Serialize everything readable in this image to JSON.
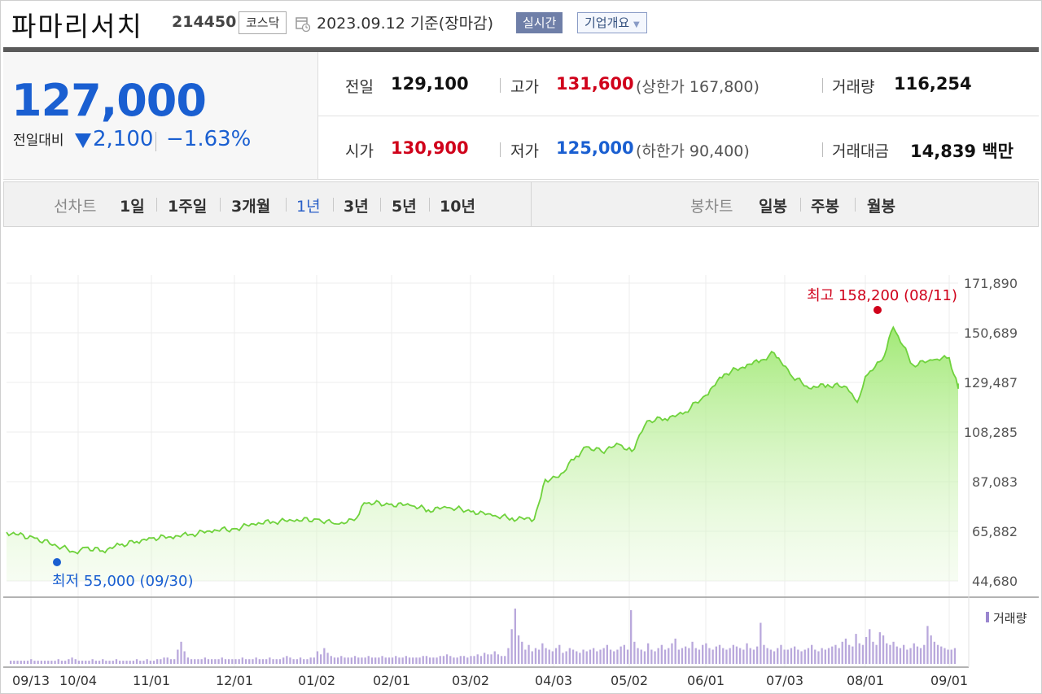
{
  "header": {
    "company": "파마리서치",
    "code": "214450",
    "market": "코스닥",
    "date": "2023.09.12 기준(장마감)",
    "realtime": "실시간",
    "corp_info": "기업개요"
  },
  "price": {
    "current": "127,000",
    "compare_label": "전일대비",
    "change": "2,100",
    "change_pct": "−1.63%"
  },
  "stats": {
    "prev_label": "전일",
    "prev": "129,100",
    "high_label": "고가",
    "high": "131,600",
    "upper_limit": "(상한가 167,800)",
    "volume_label": "거래량",
    "volume": "116,254",
    "open_label": "시가",
    "open": "130,900",
    "low_label": "저가",
    "low": "125,000",
    "lower_limit": "(하한가 90,400)",
    "amount_label": "거래대금",
    "amount": "14,839 백만"
  },
  "tabs": {
    "line_label": "선차트",
    "line": [
      "1일",
      "1주일",
      "3개월",
      "1년",
      "3년",
      "5년",
      "10년"
    ],
    "selected": "1년",
    "candle_label": "봉차트",
    "candle": [
      "일봉",
      "주봉",
      "월봉"
    ]
  },
  "colors": {
    "up": "#d0021b",
    "down": "#1a5fd1",
    "line": "#6fd23c",
    "volume": "#b9a8dc"
  },
  "chart_data": {
    "type": "area",
    "yticks": [
      "171,890",
      "150,689",
      "129,487",
      "108,285",
      "87,083",
      "65,882",
      "44,680"
    ],
    "ylim": [
      44680,
      171890
    ],
    "xticks": [
      "09/13",
      "10/04",
      "11/01",
      "12/01",
      "01/02",
      "02/01",
      "03/02",
      "04/03",
      "05/02",
      "06/01",
      "07/03",
      "08/01",
      "09/01"
    ],
    "high_label": "최고 158,200 (08/11)",
    "low_label": "최저 55,000 (09/30)",
    "high": {
      "date": "08/11",
      "value": 158200
    },
    "low": {
      "date": "09/30",
      "value": 55000
    },
    "volume_label": "거래량",
    "series": [
      {
        "points": [
          [
            "09/13",
            65500
          ],
          [
            "09/20",
            63000
          ],
          [
            "09/30",
            57000
          ],
          [
            "10/04",
            59000
          ],
          [
            "10/11",
            57500
          ],
          [
            "10/18",
            60000
          ],
          [
            "10/25",
            61500
          ],
          [
            "11/01",
            63000
          ],
          [
            "11/08",
            63500
          ],
          [
            "11/15",
            64500
          ],
          [
            "11/22",
            66000
          ],
          [
            "12/01",
            67000
          ],
          [
            "12/08",
            69000
          ],
          [
            "12/15",
            70000
          ],
          [
            "12/22",
            70500
          ],
          [
            "01/02",
            71000
          ],
          [
            "01/09",
            69000
          ],
          [
            "01/16",
            70500
          ],
          [
            "01/20",
            78000
          ],
          [
            "02/01",
            77500
          ],
          [
            "02/08",
            77000
          ],
          [
            "02/15",
            75000
          ],
          [
            "02/22",
            76000
          ],
          [
            "03/02",
            74500
          ],
          [
            "03/09",
            72500
          ],
          [
            "03/16",
            71500
          ],
          [
            "03/24",
            71000
          ],
          [
            "03/28",
            88000
          ],
          [
            "04/03",
            89000
          ],
          [
            "04/10",
            98000
          ],
          [
            "04/14",
            102000
          ],
          [
            "04/20",
            100000
          ],
          [
            "04/27",
            103000
          ],
          [
            "05/02",
            100000
          ],
          [
            "05/08",
            113000
          ],
          [
            "05/15",
            114000
          ],
          [
            "05/22",
            116000
          ],
          [
            "06/01",
            124000
          ],
          [
            "06/08",
            133000
          ],
          [
            "06/15",
            136000
          ],
          [
            "06/22",
            139000
          ],
          [
            "06/27",
            142000
          ],
          [
            "07/03",
            133000
          ],
          [
            "07/10",
            127000
          ],
          [
            "07/17",
            128500
          ],
          [
            "07/24",
            127500
          ],
          [
            "07/28",
            121000
          ],
          [
            "08/01",
            132000
          ],
          [
            "08/07",
            139000
          ],
          [
            "08/11",
            153000
          ],
          [
            "08/18",
            137000
          ],
          [
            "08/25",
            139000
          ],
          [
            "09/01",
            140000
          ],
          [
            "09/05",
            127000
          ],
          [
            "09/08",
            129000
          ],
          [
            "09/12",
            127000
          ]
        ]
      }
    ],
    "volume": [
      2,
      2,
      2,
      2,
      2,
      2,
      3,
      2,
      2,
      2,
      2,
      2,
      2,
      2,
      3,
      2,
      2,
      3,
      4,
      3,
      2,
      2,
      2,
      2,
      3,
      2,
      2,
      3,
      2,
      2,
      2,
      3,
      2,
      2,
      2,
      2,
      2,
      3,
      2,
      2,
      3,
      2,
      2,
      3,
      3,
      4,
      4,
      3,
      3,
      9,
      14,
      8,
      4,
      3,
      3,
      3,
      3,
      4,
      3,
      3,
      3,
      3,
      4,
      3,
      3,
      3,
      3,
      3,
      4,
      3,
      3,
      3,
      4,
      3,
      3,
      3,
      4,
      3,
      3,
      3,
      4,
      5,
      4,
      3,
      3,
      4,
      3,
      3,
      4,
      4,
      8,
      6,
      10,
      7,
      5,
      4,
      4,
      5,
      4,
      4,
      4,
      5,
      4,
      4,
      4,
      5,
      4,
      4,
      4,
      5,
      4,
      4,
      4,
      5,
      4,
      4,
      5,
      4,
      4,
      4,
      4,
      5,
      5,
      4,
      4,
      4,
      5,
      5,
      6,
      5,
      4,
      4,
      5,
      5,
      4,
      5,
      5,
      6,
      5,
      7,
      6,
      6,
      8,
      6,
      5,
      5,
      10,
      22,
      35,
      18,
      14,
      9,
      12,
      8,
      10,
      9,
      13,
      10,
      9,
      8,
      10,
      12,
      7,
      8,
      10,
      9,
      8,
      7,
      9,
      8,
      9,
      10,
      8,
      9,
      10,
      12,
      9,
      8,
      9,
      11,
      12,
      9,
      34,
      14,
      10,
      9,
      8,
      13,
      9,
      8,
      10,
      12,
      9,
      10,
      13,
      16,
      9,
      10,
      11,
      10,
      14,
      10,
      9,
      12,
      13,
      10,
      9,
      11,
      12,
      10,
      9,
      10,
      12,
      11,
      10,
      9,
      13,
      10,
      9,
      11,
      26,
      12,
      10,
      9,
      8,
      10,
      12,
      9,
      9,
      10,
      11,
      9,
      8,
      9,
      10,
      12,
      9,
      8,
      10,
      9,
      10,
      11,
      12,
      10,
      14,
      16,
      12,
      11,
      19,
      13,
      12,
      17,
      22,
      14,
      12,
      20,
      18,
      13,
      12,
      14,
      11,
      10,
      12,
      9,
      10,
      13,
      11,
      10,
      12,
      24,
      18,
      14,
      12,
      11,
      10,
      9,
      9,
      10
    ]
  }
}
